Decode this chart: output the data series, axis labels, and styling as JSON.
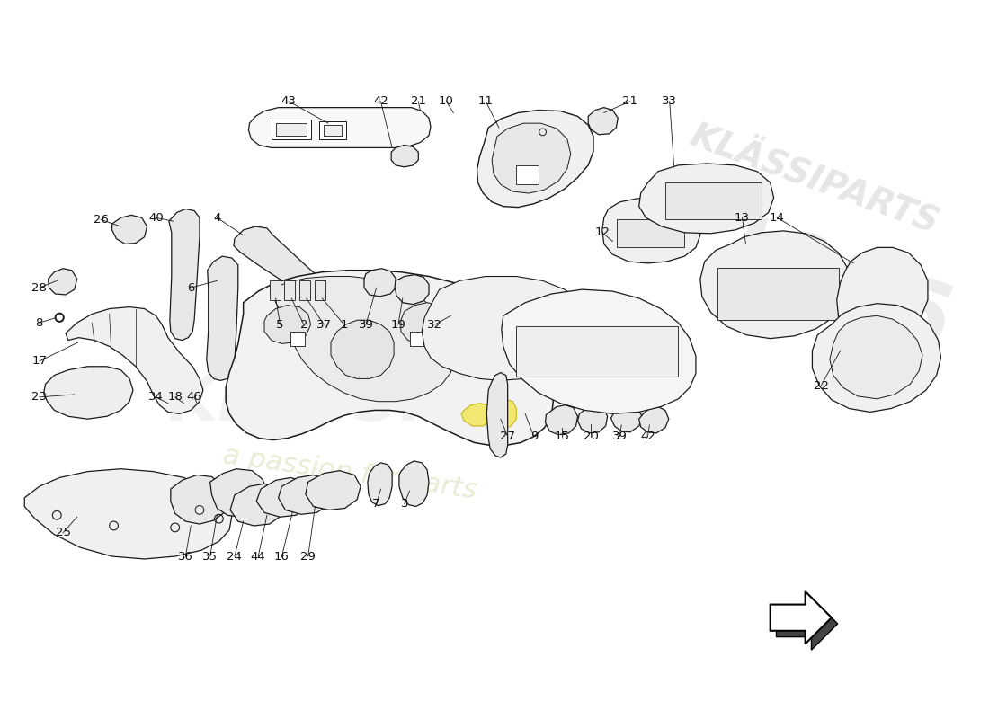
{
  "background_color": "#ffffff",
  "line_color": "#1a1a1a",
  "fill_color": "#f5f5f5",
  "fill_dark": "#e8e8e8",
  "yellow_color": "#f0e870",
  "watermark1": "a passion for parts",
  "watermark2": "1985",
  "lw": 0.9,
  "labels": [
    [
      "43",
      330,
      105
    ],
    [
      "42",
      435,
      105
    ],
    [
      "21",
      478,
      105
    ],
    [
      "10",
      510,
      105
    ],
    [
      "11",
      555,
      105
    ],
    [
      "21",
      720,
      105
    ],
    [
      "33",
      765,
      105
    ],
    [
      "26",
      115,
      240
    ],
    [
      "40",
      178,
      238
    ],
    [
      "4",
      248,
      238
    ],
    [
      "12",
      688,
      255
    ],
    [
      "13",
      848,
      238
    ],
    [
      "14",
      888,
      238
    ],
    [
      "28",
      45,
      318
    ],
    [
      "8",
      45,
      358
    ],
    [
      "6",
      218,
      318
    ],
    [
      "17",
      45,
      402
    ],
    [
      "5",
      320,
      360
    ],
    [
      "2",
      347,
      360
    ],
    [
      "37",
      370,
      360
    ],
    [
      "1",
      393,
      360
    ],
    [
      "39",
      418,
      360
    ],
    [
      "19",
      455,
      360
    ],
    [
      "32",
      497,
      360
    ],
    [
      "23",
      45,
      443
    ],
    [
      "34",
      178,
      443
    ],
    [
      "18",
      200,
      443
    ],
    [
      "46",
      222,
      443
    ],
    [
      "27",
      580,
      488
    ],
    [
      "9",
      610,
      488
    ],
    [
      "15",
      642,
      488
    ],
    [
      "20",
      675,
      488
    ],
    [
      "39",
      708,
      488
    ],
    [
      "42",
      740,
      488
    ],
    [
      "22",
      938,
      430
    ],
    [
      "7",
      430,
      565
    ],
    [
      "3",
      462,
      565
    ],
    [
      "25",
      72,
      598
    ],
    [
      "36",
      212,
      625
    ],
    [
      "35",
      240,
      625
    ],
    [
      "24",
      268,
      625
    ],
    [
      "44",
      295,
      625
    ],
    [
      "16",
      322,
      625
    ],
    [
      "29",
      352,
      625
    ]
  ]
}
